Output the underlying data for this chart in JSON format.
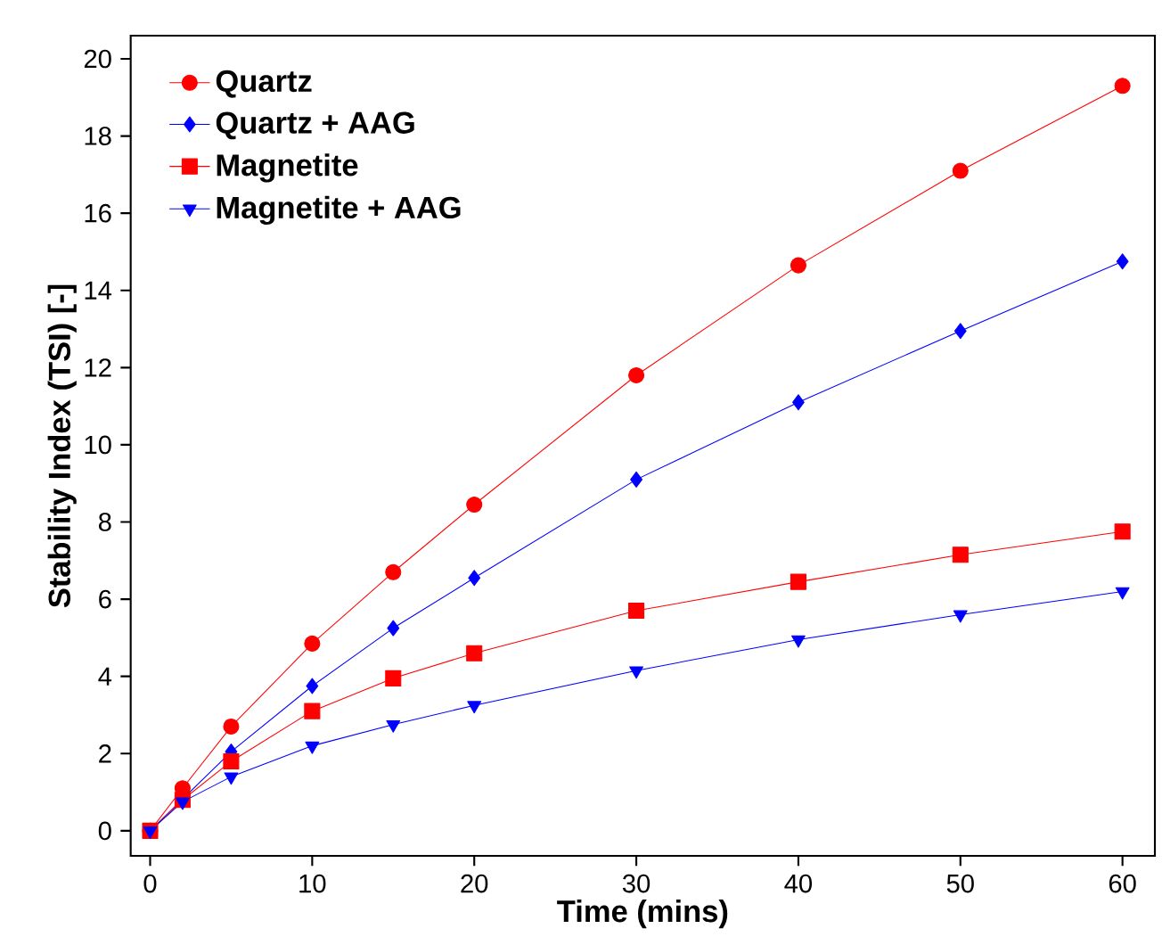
{
  "chart_data": {
    "type": "line",
    "xlabel": "Time (mins)",
    "ylabel": "Stability Index (TSI) [-]",
    "x": [
      0,
      2,
      5,
      10,
      15,
      20,
      30,
      40,
      50,
      60
    ],
    "series": [
      {
        "name": "Quartz",
        "color": "#ff0000",
        "marker": "circle",
        "values": [
          0,
          1.1,
          2.7,
          4.85,
          6.7,
          8.45,
          11.8,
          14.65,
          17.1,
          19.3
        ]
      },
      {
        "name": "Quartz + AAG",
        "color": "#0000ff",
        "marker": "diamond",
        "values": [
          0,
          null,
          2.05,
          3.75,
          5.25,
          6.55,
          9.1,
          11.1,
          12.95,
          14.75
        ]
      },
      {
        "name": "Magnetite",
        "color": "#ff0000",
        "marker": "square",
        "values": [
          0,
          0.8,
          1.8,
          3.1,
          3.95,
          4.6,
          5.7,
          6.45,
          7.15,
          7.75
        ]
      },
      {
        "name": "Magnetite + AAG",
        "color": "#0000ff",
        "marker": "triangle",
        "values": [
          0,
          0.75,
          1.4,
          2.2,
          2.75,
          3.25,
          4.15,
          4.95,
          5.6,
          6.2
        ]
      }
    ],
    "xlim": [
      -1.2,
      62
    ],
    "ylim": [
      -0.65,
      20.6
    ],
    "xticks": [
      0,
      10,
      20,
      30,
      40,
      50,
      60
    ],
    "yticks": [
      0,
      2,
      4,
      6,
      8,
      10,
      12,
      14,
      16,
      18,
      20
    ],
    "grid": false,
    "legend": "top left",
    "line_style": "solid"
  }
}
